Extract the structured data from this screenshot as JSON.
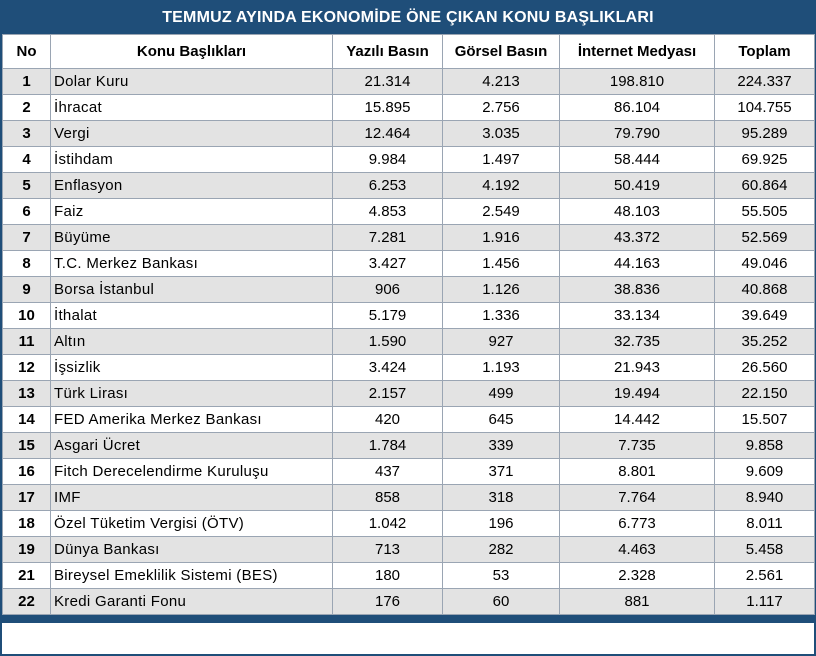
{
  "title": "TEMMUZ AYINDA EKONOMİDE ÖNE ÇIKAN KONU BAŞLIKLARI",
  "headers": {
    "no": "No",
    "topic": "Konu Başlıkları",
    "print": "Yazılı Basın",
    "visual": "Görsel Basın",
    "internet": "İnternet Medyası",
    "total": "Toplam"
  },
  "rows": [
    {
      "no": "1",
      "topic": "Dolar Kuru",
      "print": "21.314",
      "visual": "4.213",
      "internet": "198.810",
      "total": "224.337"
    },
    {
      "no": "2",
      "topic": "İhracat",
      "print": "15.895",
      "visual": "2.756",
      "internet": "86.104",
      "total": "104.755"
    },
    {
      "no": "3",
      "topic": "Vergi",
      "print": "12.464",
      "visual": "3.035",
      "internet": "79.790",
      "total": "95.289"
    },
    {
      "no": "4",
      "topic": "İstihdam",
      "print": "9.984",
      "visual": "1.497",
      "internet": "58.444",
      "total": "69.925"
    },
    {
      "no": "5",
      "topic": "Enflasyon",
      "print": "6.253",
      "visual": "4.192",
      "internet": "50.419",
      "total": "60.864"
    },
    {
      "no": "6",
      "topic": "Faiz",
      "print": "4.853",
      "visual": "2.549",
      "internet": "48.103",
      "total": "55.505"
    },
    {
      "no": "7",
      "topic": "Büyüme",
      "print": "7.281",
      "visual": "1.916",
      "internet": "43.372",
      "total": "52.569"
    },
    {
      "no": "8",
      "topic": "T.C. Merkez Bankası",
      "print": "3.427",
      "visual": "1.456",
      "internet": "44.163",
      "total": "49.046"
    },
    {
      "no": "9",
      "topic": "Borsa İstanbul",
      "print": "906",
      "visual": "1.126",
      "internet": "38.836",
      "total": "40.868"
    },
    {
      "no": "10",
      "topic": "İthalat",
      "print": "5.179",
      "visual": "1.336",
      "internet": "33.134",
      "total": "39.649"
    },
    {
      "no": "11",
      "topic": "Altın",
      "print": "1.590",
      "visual": "927",
      "internet": "32.735",
      "total": "35.252"
    },
    {
      "no": "12",
      "topic": "İşsizlik",
      "print": "3.424",
      "visual": "1.193",
      "internet": "21.943",
      "total": "26.560"
    },
    {
      "no": "13",
      "topic": "Türk Lirası",
      "print": "2.157",
      "visual": "499",
      "internet": "19.494",
      "total": "22.150"
    },
    {
      "no": "14",
      "topic": "FED Amerika Merkez Bankası",
      "print": "420",
      "visual": "645",
      "internet": "14.442",
      "total": "15.507"
    },
    {
      "no": "15",
      "topic": "Asgari Ücret",
      "print": "1.784",
      "visual": "339",
      "internet": "7.735",
      "total": "9.858"
    },
    {
      "no": "16",
      "topic": "Fitch Derecelendirme Kuruluşu",
      "print": "437",
      "visual": "371",
      "internet": "8.801",
      "total": "9.609"
    },
    {
      "no": "17",
      "topic": "IMF",
      "print": "858",
      "visual": "318",
      "internet": "7.764",
      "total": "8.940"
    },
    {
      "no": "18",
      "topic": "Özel Tüketim Vergisi (ÖTV)",
      "print": "1.042",
      "visual": "196",
      "internet": "6.773",
      "total": "8.011"
    },
    {
      "no": "19",
      "topic": "Dünya Bankası",
      "print": "713",
      "visual": "282",
      "internet": "4.463",
      "total": "5.458"
    },
    {
      "no": "21",
      "topic": "Bireysel Emeklilik Sistemi (BES)",
      "print": "180",
      "visual": "53",
      "internet": "2.328",
      "total": "2.561"
    },
    {
      "no": "22",
      "topic": "Kredi Garanti Fonu",
      "print": "176",
      "visual": "60",
      "internet": "881",
      "total": "1.117"
    }
  ]
}
